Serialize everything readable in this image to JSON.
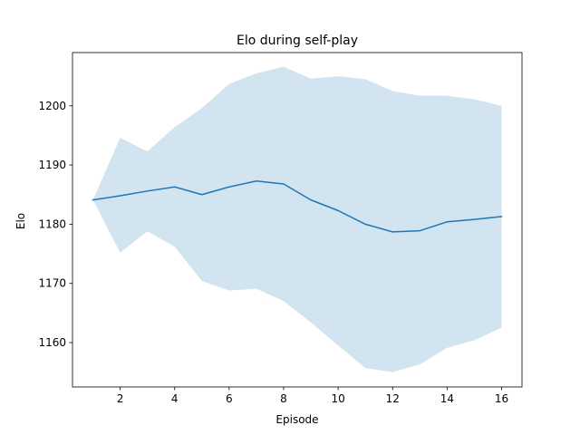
{
  "chart_data": {
    "type": "line",
    "title": "Elo during self-play",
    "xlabel": "Episode",
    "ylabel": "Elo",
    "xlim": [
      0.25,
      16.75
    ],
    "ylim": [
      1152.5,
      1209
    ],
    "xticks": [
      2,
      4,
      6,
      8,
      10,
      12,
      14,
      16
    ],
    "yticks": [
      1160,
      1170,
      1180,
      1190,
      1200
    ],
    "grid": false,
    "legend": "none",
    "colors": {
      "line": "#1f77b4",
      "band": "#1f77b4",
      "band_opacity": 0.2
    },
    "series": [
      {
        "x": [
          1,
          2,
          3,
          4,
          5,
          6,
          7,
          8,
          9,
          10,
          11,
          12,
          13,
          14,
          15,
          16
        ],
        "mean": [
          1184.1,
          1184.8,
          1185.6,
          1186.3,
          1185.0,
          1186.3,
          1187.3,
          1186.8,
          1184.1,
          1182.3,
          1180.0,
          1178.7,
          1178.9,
          1180.4,
          1180.8,
          1181.3
        ],
        "upper": [
          1184.1,
          1194.6,
          1192.3,
          1196.4,
          1199.6,
          1203.7,
          1205.5,
          1206.6,
          1204.6,
          1205.0,
          1204.5,
          1202.5,
          1201.7,
          1201.7,
          1201.1,
          1200.0
        ],
        "lower": [
          1184.1,
          1175.2,
          1178.8,
          1176.2,
          1170.4,
          1168.8,
          1169.1,
          1167.0,
          1163.4,
          1159.5,
          1155.7,
          1155.0,
          1156.3,
          1159.1,
          1160.4,
          1162.5
        ]
      }
    ]
  }
}
